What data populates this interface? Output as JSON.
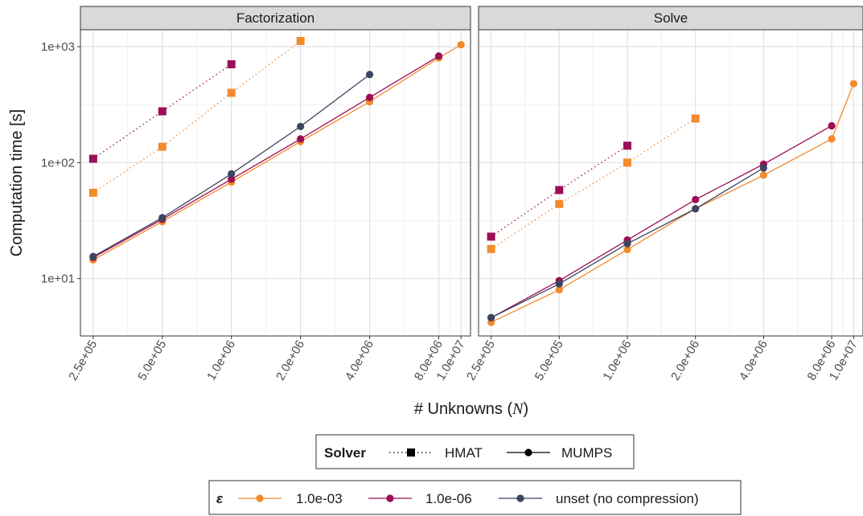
{
  "chart_data": {
    "type": "line",
    "ylabel": "Computation time [s]",
    "xlabel_prefix": "# Unknowns (",
    "xlabel_symbol": "N",
    "xlabel_suffix": ")",
    "x_scale": "log",
    "y_scale": "log",
    "grid": true,
    "xlim": [
      220000,
      11000000
    ],
    "ylim": [
      3.2,
      1400
    ],
    "x_ticks": [
      250000,
      500000,
      1000000,
      2000000,
      4000000,
      8000000,
      10000000
    ],
    "x_tick_labels": [
      "2.5e+05",
      "5.0e+05",
      "1.0e+06",
      "2.0e+06",
      "4.0e+06",
      "8.0e+06",
      "1.0e+07"
    ],
    "y_ticks": [
      10,
      100,
      1000
    ],
    "y_tick_labels": [
      "1e+01",
      "1e+02",
      "1e+03"
    ],
    "colors": {
      "1.0e-03": "#f28a2e",
      "1.0e-06": "#9c0e56",
      "unset (no compression)": "#3b4560"
    },
    "panels": [
      {
        "title": "Factorization",
        "series": [
          {
            "solver": "HMAT",
            "epsilon": "1.0e-03",
            "x": [
              250000,
              500000,
              1000000,
              2000000
            ],
            "y": [
              55,
              137,
              400,
              1120
            ]
          },
          {
            "solver": "HMAT",
            "epsilon": "1.0e-06",
            "x": [
              250000,
              500000,
              1000000
            ],
            "y": [
              108,
              277,
              705
            ]
          },
          {
            "solver": "MUMPS",
            "epsilon": "1.0e-03",
            "x": [
              250000,
              500000,
              1000000,
              2000000,
              4000000,
              8000000,
              10000000
            ],
            "y": [
              14.5,
              31,
              68,
              152,
              335,
              800,
              1040
            ]
          },
          {
            "solver": "MUMPS",
            "epsilon": "1.0e-06",
            "x": [
              250000,
              500000,
              1000000,
              2000000,
              4000000,
              8000000
            ],
            "y": [
              15.2,
              32.5,
              72,
              160,
              365,
              830
            ]
          },
          {
            "solver": "MUMPS",
            "epsilon": "unset (no compression)",
            "x": [
              250000,
              500000,
              1000000,
              2000000,
              4000000
            ],
            "y": [
              15.5,
              33.5,
              80,
              205,
              575
            ]
          }
        ]
      },
      {
        "title": "Solve",
        "series": [
          {
            "solver": "HMAT",
            "epsilon": "1.0e-03",
            "x": [
              250000,
              500000,
              1000000,
              2000000
            ],
            "y": [
              18,
              44,
              100,
              240
            ]
          },
          {
            "solver": "HMAT",
            "epsilon": "1.0e-06",
            "x": [
              250000,
              500000,
              1000000
            ],
            "y": [
              23,
              58,
              140
            ]
          },
          {
            "solver": "MUMPS",
            "epsilon": "1.0e-03",
            "x": [
              250000,
              500000,
              1000000,
              2000000,
              4000000,
              8000000,
              10000000
            ],
            "y": [
              4.2,
              8,
              17.8,
              40,
              78,
              160,
              480
            ]
          },
          {
            "solver": "MUMPS",
            "epsilon": "1.0e-06",
            "x": [
              250000,
              500000,
              1000000,
              2000000,
              4000000,
              8000000
            ],
            "y": [
              4.6,
              9.6,
              21.5,
              48,
              97,
              208
            ]
          },
          {
            "solver": "MUMPS",
            "epsilon": "unset (no compression)",
            "x": [
              250000,
              500000,
              1000000,
              2000000,
              4000000
            ],
            "y": [
              4.6,
              9,
              20,
              40,
              90
            ]
          }
        ]
      }
    ],
    "legends": [
      {
        "title": "Solver",
        "entries": [
          {
            "label": "HMAT",
            "linetype": "dotted",
            "marker": "square"
          },
          {
            "label": "MUMPS",
            "linetype": "solid",
            "marker": "circle"
          }
        ]
      },
      {
        "title": "ε",
        "entries": [
          {
            "label": "1.0e-03"
          },
          {
            "label": "1.0e-06"
          },
          {
            "label": "unset (no compression)"
          }
        ]
      }
    ]
  }
}
